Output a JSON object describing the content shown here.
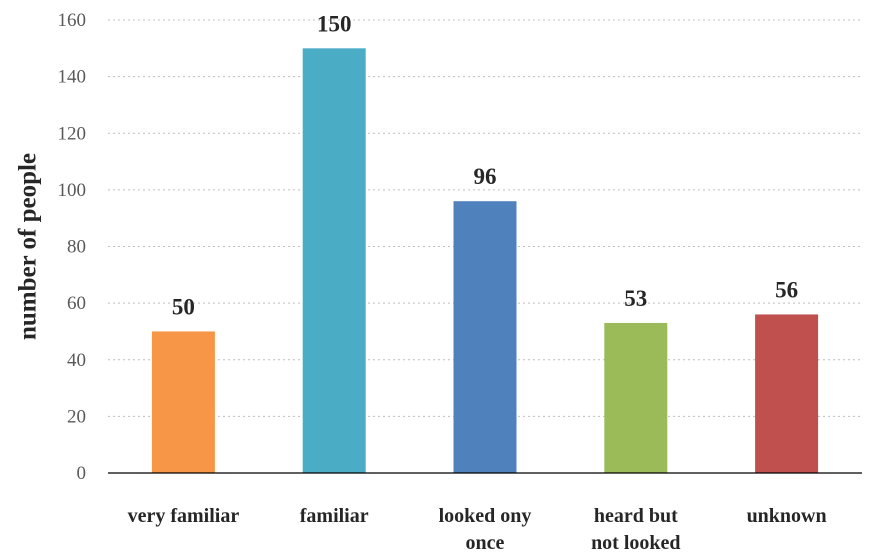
{
  "chart_data": {
    "type": "bar",
    "categories": [
      [
        "very familiar"
      ],
      [
        "familiar"
      ],
      [
        "looked ony",
        "once"
      ],
      [
        "heard  but",
        "not looked"
      ],
      [
        "unknown"
      ]
    ],
    "values": [
      50,
      150,
      96,
      53,
      56
    ],
    "colors": [
      "#f79646",
      "#4bacc6",
      "#4f81bd",
      "#9bbb59",
      "#c0504d"
    ],
    "ylabel": "number of people",
    "ylim": [
      0,
      160
    ],
    "yticks": [
      0,
      20,
      40,
      60,
      80,
      100,
      120,
      140,
      160
    ],
    "grid": true,
    "data_labels": true
  }
}
